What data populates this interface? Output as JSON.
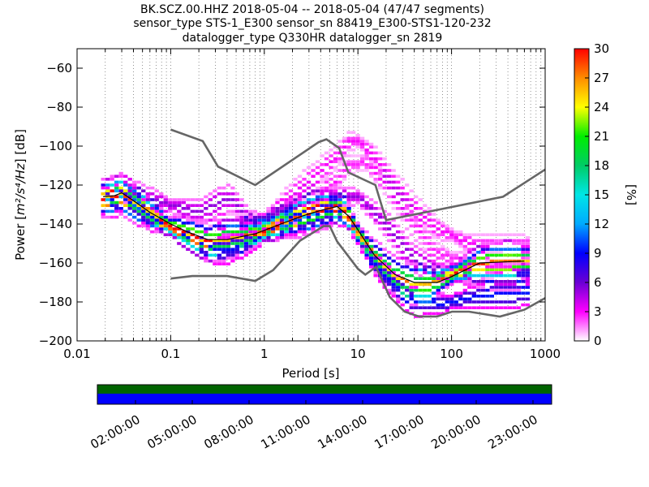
{
  "title_lines": [
    "BK.SCZ.00.HHZ   2018-05-04 -- 2018-05-04  (47/47 segments)",
    "sensor_type STS-1_E300 sensor_sn 88419_E300-STS1-120-232",
    "datalogger_type Q330HR datalogger_sn 2819"
  ],
  "chart_data": [
    {
      "type": "heatmap",
      "title": "BK.SCZ.00.HHZ   2018-05-04 -- 2018-05-04  (47/47 segments)",
      "xlabel": "Period [s]",
      "ylabel_prefix": "Power [",
      "ylabel_math": "m²/s⁴/Hz",
      "ylabel_suffix": "] [dB]",
      "x_scale": "log",
      "xlim": [
        0.01,
        1000
      ],
      "ylim": [
        -200,
        -50
      ],
      "grid": "dotted vertical period grid",
      "x_ticks": [
        {
          "value": 0.01,
          "label": "0.01"
        },
        {
          "value": 0.1,
          "label": "0.1"
        },
        {
          "value": 1,
          "label": "1"
        },
        {
          "value": 10,
          "label": "10"
        },
        {
          "value": 100,
          "label": "100"
        },
        {
          "value": 1000,
          "label": "1000"
        }
      ],
      "y_ticks": [
        {
          "value": -60,
          "label": "−60"
        },
        {
          "value": -80,
          "label": "−80"
        },
        {
          "value": -100,
          "label": "−100"
        },
        {
          "value": -120,
          "label": "−120"
        },
        {
          "value": -140,
          "label": "−140"
        },
        {
          "value": -160,
          "label": "−160"
        },
        {
          "value": -180,
          "label": "−180"
        },
        {
          "value": -200,
          "label": "−200"
        }
      ],
      "noise_models": [
        {
          "name": "NHNM",
          "color": "#666666",
          "points": [
            [
              0.1,
              -91.5
            ],
            [
              0.22,
              -97.4
            ],
            [
              0.32,
              -110.5
            ],
            [
              0.8,
              -120
            ],
            [
              3.8,
              -98
            ],
            [
              4.6,
              -96.5
            ],
            [
              6.3,
              -101
            ],
            [
              7.9,
              -113.5
            ],
            [
              15.4,
              -120
            ],
            [
              20,
              -138
            ],
            [
              354.8,
              -126
            ],
            [
              1000,
              -112
            ]
          ]
        },
        {
          "name": "NLNM",
          "color": "#666666",
          "points": [
            [
              0.1,
              -168
            ],
            [
              0.17,
              -166.7
            ],
            [
              0.4,
              -166.7
            ],
            [
              0.8,
              -169.2
            ],
            [
              1.24,
              -163.7
            ],
            [
              2.4,
              -148.6
            ],
            [
              4.3,
              -141.1
            ],
            [
              5,
              -141.1
            ],
            [
              6,
              -149
            ],
            [
              10,
              -163
            ],
            [
              12,
              -166
            ],
            [
              15.6,
              -162
            ],
            [
              21.9,
              -177.5
            ],
            [
              31.6,
              -185
            ],
            [
              45,
              -187.5
            ],
            [
              70,
              -187.5
            ],
            [
              101,
              -185
            ],
            [
              154,
              -185
            ],
            [
              328,
              -187.5
            ],
            [
              600,
              -184
            ],
            [
              1000,
              -178
            ]
          ]
        }
      ],
      "mode_line": {
        "color": "#000000",
        "points": [
          [
            0.019,
            -126
          ],
          [
            0.025,
            -125.5
          ],
          [
            0.03,
            -124
          ],
          [
            0.04,
            -128
          ],
          [
            0.06,
            -134
          ],
          [
            0.1,
            -140
          ],
          [
            0.15,
            -144
          ],
          [
            0.25,
            -148
          ],
          [
            0.4,
            -148
          ],
          [
            0.8,
            -145
          ],
          [
            1.5,
            -140
          ],
          [
            2.5,
            -136
          ],
          [
            4,
            -133
          ],
          [
            6,
            -131
          ],
          [
            8,
            -136
          ],
          [
            10,
            -143
          ],
          [
            15,
            -156
          ],
          [
            25,
            -166
          ],
          [
            40,
            -170
          ],
          [
            70,
            -170
          ],
          [
            100,
            -167
          ],
          [
            200,
            -160
          ],
          [
            600,
            -159
          ]
        ]
      },
      "psd_groups": [
        {
          "name": "dominant",
          "weight": 0.95,
          "points": [
            [
              0.019,
              -127
            ],
            [
              0.025,
              -126
            ],
            [
              0.03,
              -125
            ],
            [
              0.04,
              -129
            ],
            [
              0.06,
              -135
            ],
            [
              0.1,
              -141
            ],
            [
              0.15,
              -145
            ],
            [
              0.25,
              -149
            ],
            [
              0.4,
              -148
            ],
            [
              0.8,
              -145
            ],
            [
              1.5,
              -140
            ],
            [
              2.5,
              -136
            ],
            [
              4,
              -133
            ],
            [
              6,
              -131
            ],
            [
              8,
              -136
            ],
            [
              10,
              -144
            ],
            [
              15,
              -156
            ],
            [
              25,
              -167
            ],
            [
              40,
              -171
            ],
            [
              70,
              -170
            ],
            [
              100,
              -166
            ],
            [
              200,
              -160
            ],
            [
              650,
              -159
            ]
          ]
        },
        {
          "name": "quiet",
          "weight": 0.35,
          "points": [
            [
              0.019,
              -128
            ],
            [
              0.03,
              -126
            ],
            [
              0.05,
              -133
            ],
            [
              0.1,
              -143
            ],
            [
              0.2,
              -150
            ],
            [
              0.35,
              -154
            ],
            [
              0.6,
              -151
            ],
            [
              1,
              -146
            ],
            [
              2,
              -139
            ],
            [
              4,
              -134
            ],
            [
              7,
              -133
            ],
            [
              10,
              -147
            ],
            [
              15,
              -160
            ],
            [
              25,
              -172
            ],
            [
              40,
              -180
            ],
            [
              80,
              -181
            ],
            [
              150,
              -178
            ],
            [
              300,
              -176
            ],
            [
              650,
              -176
            ]
          ]
        },
        {
          "name": "elevated",
          "weight": 0.2,
          "points": [
            [
              0.02,
              -124
            ],
            [
              0.03,
              -122
            ],
            [
              0.05,
              -126
            ],
            [
              0.1,
              -130
            ],
            [
              0.2,
              -134
            ],
            [
              0.35,
              -128
            ],
            [
              0.45,
              -127
            ],
            [
              0.7,
              -138
            ],
            [
              1,
              -138
            ],
            [
              2,
              -134
            ],
            [
              4,
              -130
            ],
            [
              7,
              -126
            ],
            [
              10,
              -126
            ],
            [
              20,
              -140
            ],
            [
              40,
              -158
            ],
            [
              70,
              -165
            ],
            [
              150,
              -166
            ],
            [
              300,
              -167
            ],
            [
              650,
              -167
            ]
          ]
        },
        {
          "name": "microseism-high",
          "weight": 0.12,
          "points": [
            [
              0.3,
              -143
            ],
            [
              0.6,
              -140
            ],
            [
              1,
              -138
            ],
            [
              2,
              -125
            ],
            [
              4,
              -113
            ],
            [
              6,
              -105
            ],
            [
              8,
              -98
            ],
            [
              10,
              -97
            ],
            [
              15,
              -105
            ],
            [
              25,
              -120
            ],
            [
              40,
              -132
            ],
            [
              70,
              -142
            ],
            [
              150,
              -150
            ],
            [
              300,
              -153
            ],
            [
              650,
              -152
            ]
          ]
        },
        {
          "name": "microseism-mid",
          "weight": 0.1,
          "points": [
            [
              1,
              -140
            ],
            [
              2,
              -133
            ],
            [
              4,
              -125
            ],
            [
              6,
              -117
            ],
            [
              8,
              -110
            ],
            [
              12,
              -108
            ],
            [
              20,
              -120
            ],
            [
              40,
              -140
            ],
            [
              70,
              -155
            ],
            [
              150,
              -160
            ],
            [
              300,
              -162
            ],
            [
              650,
              -163
            ]
          ]
        }
      ],
      "colorbar": {
        "label": "[%]",
        "min": 0,
        "max": 30,
        "ticks": [
          0,
          3,
          6,
          9,
          12,
          15,
          18,
          21,
          24,
          27,
          30
        ],
        "stops": [
          "#ffffff",
          "#ff00ff",
          "#6b00d4",
          "#0000ff",
          "#00aaff",
          "#00e6e6",
          "#00cc66",
          "#00ee00",
          "#ffff00",
          "#ff8c00",
          "#ff0000"
        ]
      },
      "data_availability": {
        "x_tick_labels": [
          "02:00:00",
          "05:00:00",
          "08:00:00",
          "11:00:00",
          "14:00:00",
          "17:00:00",
          "20:00:00",
          "23:00:00"
        ],
        "bands": [
          {
            "name": "availability",
            "color": "#006400"
          },
          {
            "name": "gaps",
            "color": "#0000ff"
          }
        ]
      }
    }
  ]
}
